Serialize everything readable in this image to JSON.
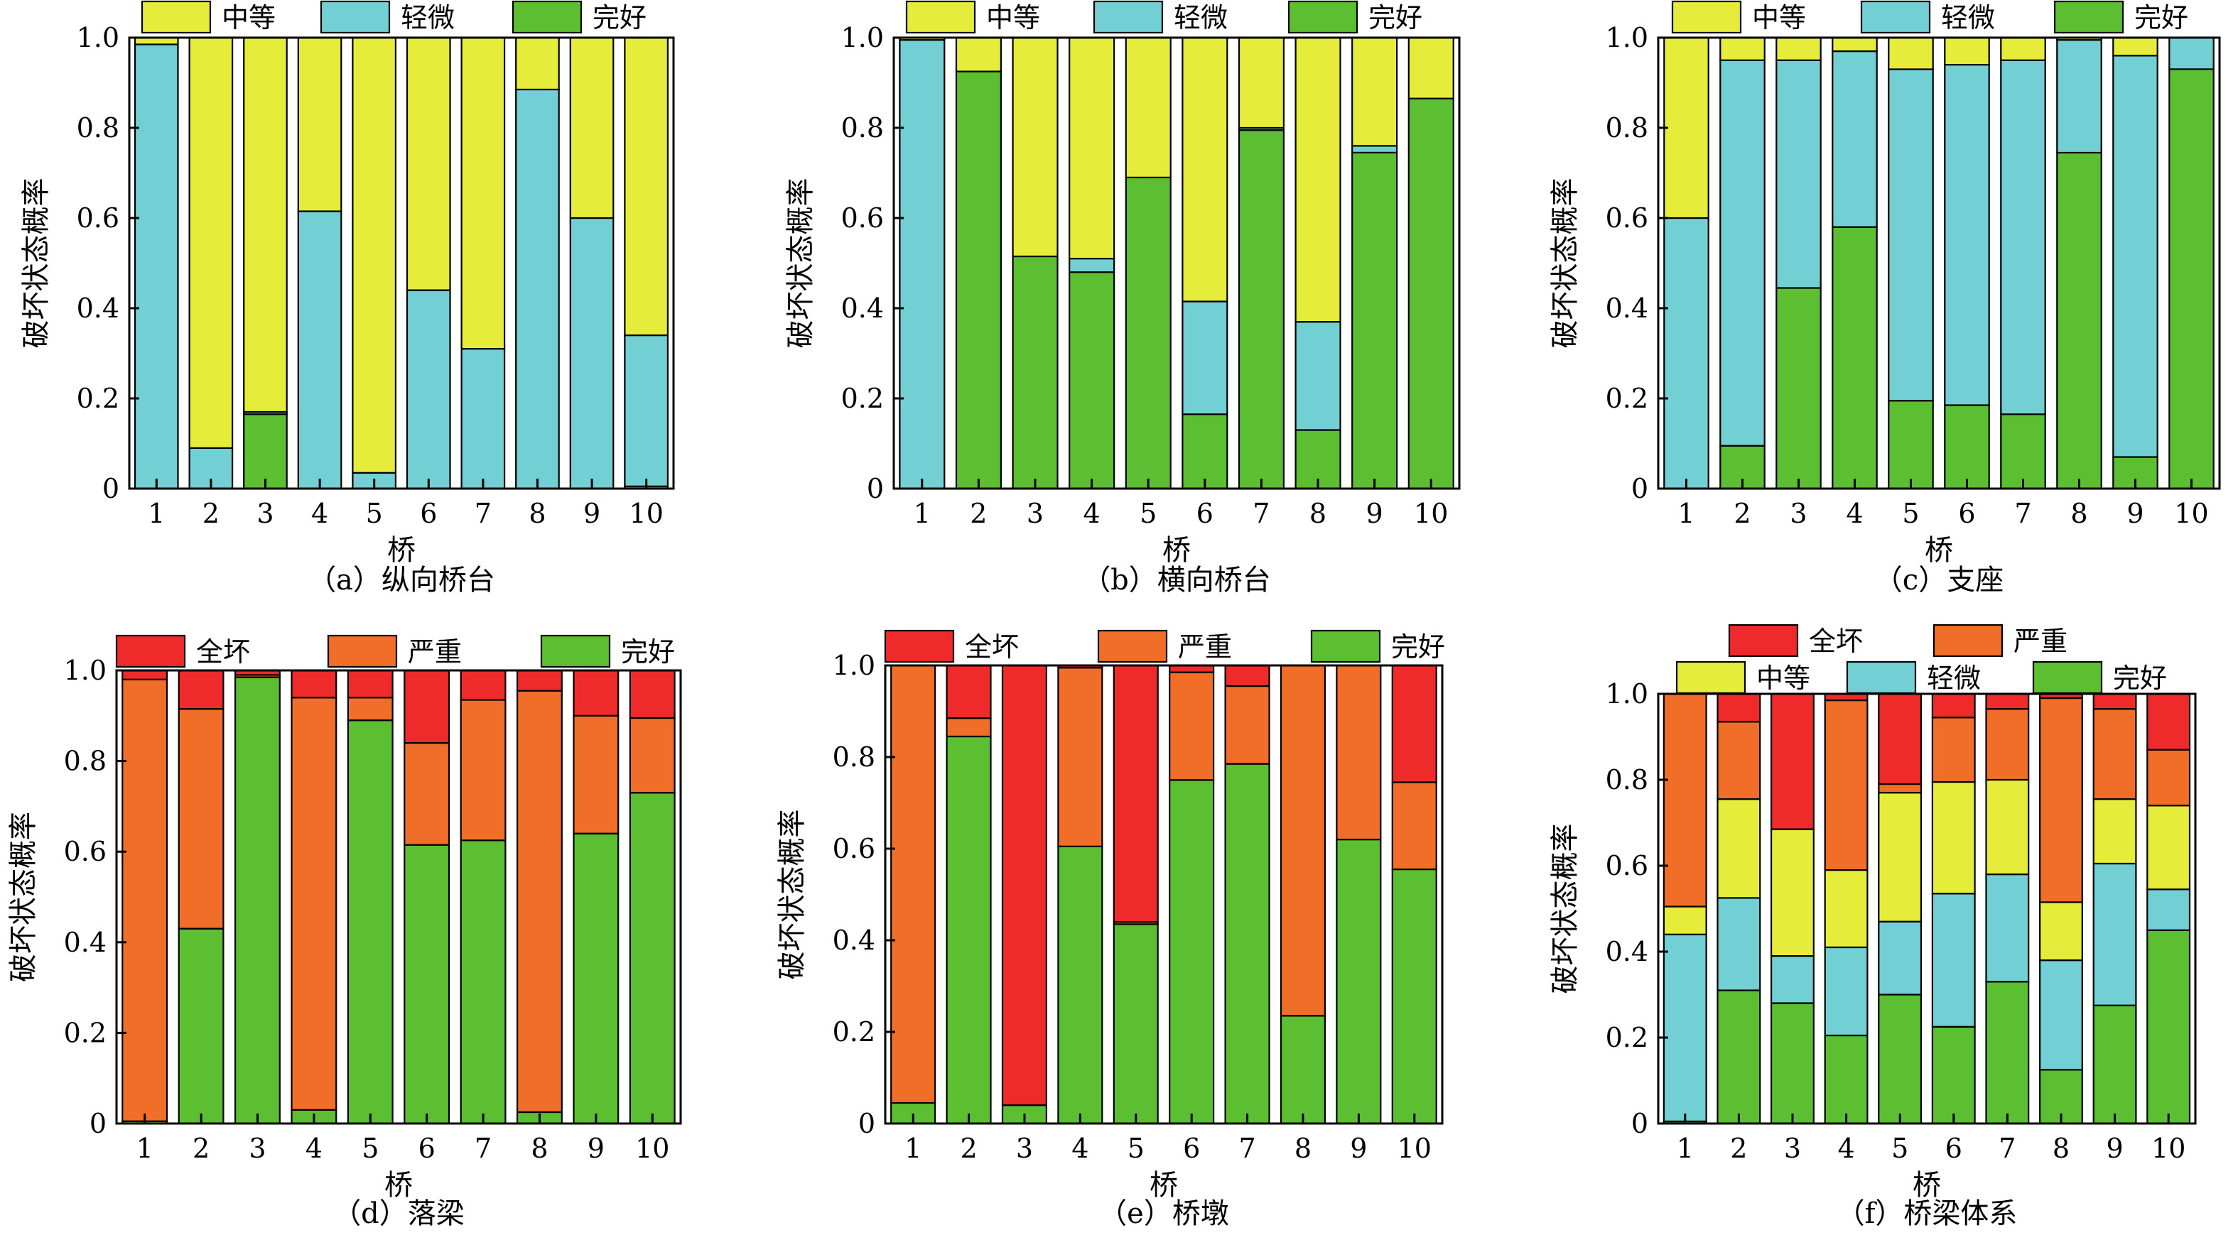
{
  "colors": {
    "quanhuai": "#EE2A2A",
    "yanzhong": "#F06E28",
    "zhongdeng": "#E6EC3A",
    "qingwei": "#72CFD3",
    "wanhao": "#5CBF31"
  },
  "chart_data": [
    {
      "type": "bar",
      "stacked": true,
      "caption": "（a）纵向桥台",
      "xlabel": "桥",
      "ylabel": "破坏状态概率",
      "ylim": [
        0,
        1.0
      ],
      "yticks": [
        "0",
        "0.2",
        "0.4",
        "0.6",
        "0.8",
        "1.0"
      ],
      "categories": [
        "1",
        "2",
        "3",
        "4",
        "5",
        "6",
        "7",
        "8",
        "9",
        "10"
      ],
      "legend": [
        {
          "key": "zhongdeng",
          "name": "中等"
        },
        {
          "key": "qingwei",
          "name": "轻微"
        },
        {
          "key": "wanhao",
          "name": "完好"
        }
      ],
      "series": [
        {
          "key": "wanhao",
          "values": [
            0,
            0,
            0.165,
            0,
            0,
            0,
            0,
            0,
            0,
            0.005
          ]
        },
        {
          "key": "qingwei",
          "values": [
            0.985,
            0.09,
            0.005,
            0.615,
            0.035,
            0.44,
            0.31,
            0.885,
            0.6,
            0.335
          ]
        },
        {
          "key": "zhongdeng",
          "values": [
            0.015,
            0.91,
            0.83,
            0.385,
            0.965,
            0.56,
            0.69,
            0.115,
            0.4,
            0.66
          ]
        }
      ]
    },
    {
      "type": "bar",
      "stacked": true,
      "caption": "（b）横向桥台",
      "xlabel": "桥",
      "ylabel": "破坏状态概率",
      "ylim": [
        0,
        1.0
      ],
      "yticks": [
        "0",
        "0.2",
        "0.4",
        "0.6",
        "0.8",
        "1.0"
      ],
      "categories": [
        "1",
        "2",
        "3",
        "4",
        "5",
        "6",
        "7",
        "8",
        "9",
        "10"
      ],
      "legend": [
        {
          "key": "zhongdeng",
          "name": "中等"
        },
        {
          "key": "qingwei",
          "name": "轻微"
        },
        {
          "key": "wanhao",
          "name": "完好"
        }
      ],
      "series": [
        {
          "key": "wanhao",
          "values": [
            0,
            0.925,
            0.515,
            0.48,
            0.69,
            0.165,
            0.795,
            0.13,
            0.745,
            0.865
          ]
        },
        {
          "key": "qingwei",
          "values": [
            0.995,
            0,
            0,
            0.03,
            0,
            0.25,
            0.005,
            0.24,
            0.015,
            0
          ]
        },
        {
          "key": "zhongdeng",
          "values": [
            0.005,
            0.075,
            0.485,
            0.49,
            0.31,
            0.585,
            0.2,
            0.63,
            0.24,
            0.135
          ]
        }
      ]
    },
    {
      "type": "bar",
      "stacked": true,
      "caption": "（c）支座",
      "xlabel": "桥",
      "ylabel": "破坏状态概率",
      "ylim": [
        0,
        1.0
      ],
      "yticks": [
        "0",
        "0.2",
        "0.4",
        "0.6",
        "0.8",
        "1.0"
      ],
      "categories": [
        "1",
        "2",
        "3",
        "4",
        "5",
        "6",
        "7",
        "8",
        "9",
        "10"
      ],
      "legend": [
        {
          "key": "zhongdeng",
          "name": "中等"
        },
        {
          "key": "qingwei",
          "name": "轻微"
        },
        {
          "key": "wanhao",
          "name": "完好"
        }
      ],
      "series": [
        {
          "key": "wanhao",
          "values": [
            0,
            0.095,
            0.445,
            0.58,
            0.195,
            0.185,
            0.165,
            0.745,
            0.07,
            0.93
          ]
        },
        {
          "key": "qingwei",
          "values": [
            0.6,
            0.855,
            0.505,
            0.39,
            0.735,
            0.755,
            0.785,
            0.25,
            0.89,
            0.07
          ]
        },
        {
          "key": "zhongdeng",
          "values": [
            0.4,
            0.05,
            0.05,
            0.03,
            0.07,
            0.06,
            0.05,
            0.005,
            0.04,
            0
          ]
        }
      ]
    },
    {
      "type": "bar",
      "stacked": true,
      "caption": "（d）落梁",
      "xlabel": "桥",
      "ylabel": "破坏状态概率",
      "ylim": [
        0,
        1.0
      ],
      "yticks": [
        "0",
        "0.2",
        "0.4",
        "0.6",
        "0.8",
        "1.0"
      ],
      "categories": [
        "1",
        "2",
        "3",
        "4",
        "5",
        "6",
        "7",
        "8",
        "9",
        "10"
      ],
      "legend": [
        {
          "key": "quanhuai",
          "name": "全坏"
        },
        {
          "key": "yanzhong",
          "name": "严重"
        },
        {
          "key": "wanhao",
          "name": "完好"
        }
      ],
      "series": [
        {
          "key": "wanhao",
          "values": [
            0.005,
            0.43,
            0.985,
            0.03,
            0.89,
            0.615,
            0.625,
            0.025,
            0.64,
            0.73
          ]
        },
        {
          "key": "yanzhong",
          "values": [
            0.975,
            0.485,
            0.005,
            0.91,
            0.05,
            0.225,
            0.31,
            0.93,
            0.26,
            0.165
          ]
        },
        {
          "key": "quanhuai",
          "values": [
            0.02,
            0.085,
            0.01,
            0.06,
            0.06,
            0.16,
            0.065,
            0.045,
            0.1,
            0.105
          ]
        }
      ]
    },
    {
      "type": "bar",
      "stacked": true,
      "caption": "（e）桥墩",
      "xlabel": "桥",
      "ylabel": "破坏状态概率",
      "ylim": [
        0,
        1.0
      ],
      "yticks": [
        "0",
        "0.2",
        "0.4",
        "0.6",
        "0.8",
        "1.0"
      ],
      "categories": [
        "1",
        "2",
        "3",
        "4",
        "5",
        "6",
        "7",
        "8",
        "9",
        "10"
      ],
      "legend": [
        {
          "key": "quanhuai",
          "name": "全坏"
        },
        {
          "key": "yanzhong",
          "name": "严重"
        },
        {
          "key": "wanhao",
          "name": "完好"
        }
      ],
      "series": [
        {
          "key": "wanhao",
          "values": [
            0.045,
            0.845,
            0.04,
            0.605,
            0.435,
            0.75,
            0.785,
            0.235,
            0.62,
            0.555
          ]
        },
        {
          "key": "yanzhong",
          "values": [
            0.955,
            0.04,
            0,
            0.39,
            0.005,
            0.235,
            0.17,
            0.765,
            0.38,
            0.19
          ]
        },
        {
          "key": "quanhuai",
          "values": [
            0,
            0.115,
            0.96,
            0.005,
            0.56,
            0.015,
            0.045,
            0,
            0,
            0.255
          ]
        }
      ]
    },
    {
      "type": "bar",
      "stacked": true,
      "caption": "（f）桥梁体系",
      "xlabel": "桥",
      "ylabel": "破坏状态概率",
      "ylim": [
        0,
        1.0
      ],
      "yticks": [
        "0",
        "0.2",
        "0.4",
        "0.6",
        "0.8",
        "1.0"
      ],
      "categories": [
        "1",
        "2",
        "3",
        "4",
        "5",
        "6",
        "7",
        "8",
        "9",
        "10"
      ],
      "legend": [
        {
          "key": "quanhuai",
          "name": "全坏"
        },
        {
          "key": "yanzhong",
          "name": "严重"
        },
        {
          "key": "zhongdeng",
          "name": "中等"
        },
        {
          "key": "qingwei",
          "name": "轻微"
        },
        {
          "key": "wanhao",
          "name": "完好"
        }
      ],
      "series": [
        {
          "key": "wanhao",
          "values": [
            0.005,
            0.31,
            0.28,
            0.205,
            0.3,
            0.225,
            0.33,
            0.125,
            0.275,
            0.45
          ]
        },
        {
          "key": "qingwei",
          "values": [
            0.435,
            0.215,
            0.11,
            0.205,
            0.17,
            0.31,
            0.25,
            0.255,
            0.33,
            0.095
          ]
        },
        {
          "key": "zhongdeng",
          "values": [
            0.065,
            0.23,
            0.295,
            0.18,
            0.3,
            0.26,
            0.22,
            0.135,
            0.15,
            0.195
          ]
        },
        {
          "key": "yanzhong",
          "values": [
            0.495,
            0.18,
            0,
            0.395,
            0.02,
            0.15,
            0.165,
            0.475,
            0.21,
            0.13
          ]
        },
        {
          "key": "quanhuai",
          "values": [
            0,
            0.065,
            0.315,
            0.015,
            0.21,
            0.055,
            0.035,
            0.01,
            0.035,
            0.13
          ]
        }
      ]
    }
  ]
}
